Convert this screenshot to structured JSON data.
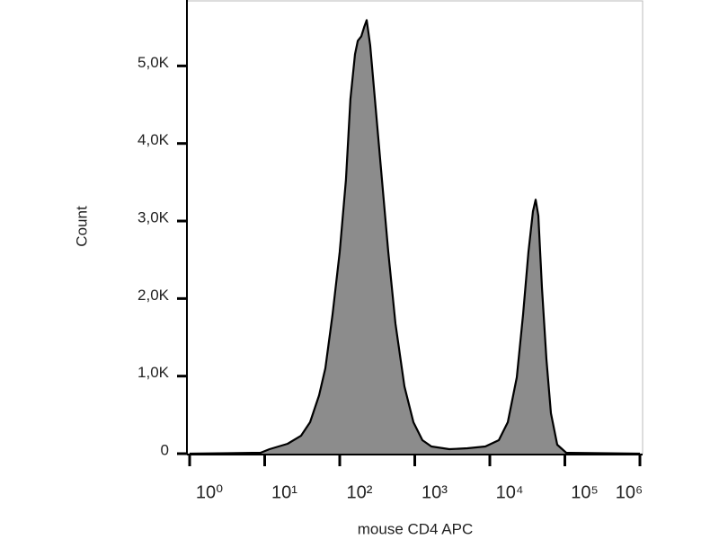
{
  "chart_data": {
    "type": "area",
    "x_label": "mouse CD4 APC",
    "y_label": "Count",
    "x": [
      1,
      8.8,
      11.6,
      20.2,
      30.5,
      40.3,
      53,
      64.3,
      80.2,
      100,
      121,
      139,
      160,
      174,
      194,
      211,
      229,
      255,
      301,
      365,
      443,
      553,
      728,
      960,
      1265,
      1667,
      2890,
      5020,
      8710,
      13180,
      17380,
      22870,
      27730,
      32730,
      37580,
      40830,
      44370,
      49550,
      56800,
      65200,
      79000,
      104200,
      1000000
    ],
    "values": [
      0,
      12,
      58,
      127,
      231,
      405,
      752,
      1100,
      1794,
      2604,
      3530,
      4572,
      5150,
      5324,
      5382,
      5498,
      5590,
      5266,
      4456,
      3530,
      2604,
      1678,
      868,
      405,
      174,
      93,
      58,
      69,
      93,
      174,
      405,
      984,
      1794,
      2604,
      3125,
      3275,
      3067,
      2141,
      1215,
      521,
      116,
      12,
      0
    ],
    "color": "#8c8c8c",
    "line_color": "#000000",
    "xscale": "log",
    "xlim": [
      1,
      1000000
    ],
    "xticks": [
      {
        "value": 1,
        "label": "10⁰"
      },
      {
        "value": 10,
        "label": "10¹"
      },
      {
        "value": 100,
        "label": "10²"
      },
      {
        "value": 1000,
        "label": "10³"
      },
      {
        "value": 10000,
        "label": "10⁴"
      },
      {
        "value": 100000,
        "label": "10⁵"
      },
      {
        "value": 1000000,
        "label": "10⁶"
      }
    ],
    "ylim": [
      0,
      5850
    ],
    "yticks": [
      0,
      {
        "value": 1000,
        "label": "1,0K"
      },
      {
        "value": 2000,
        "label": "2,0K"
      },
      {
        "value": 3000,
        "label": "3,0K"
      },
      {
        "value": 4000,
        "label": "4,0K"
      },
      {
        "value": 5000,
        "label": "5,0K"
      }
    ]
  }
}
